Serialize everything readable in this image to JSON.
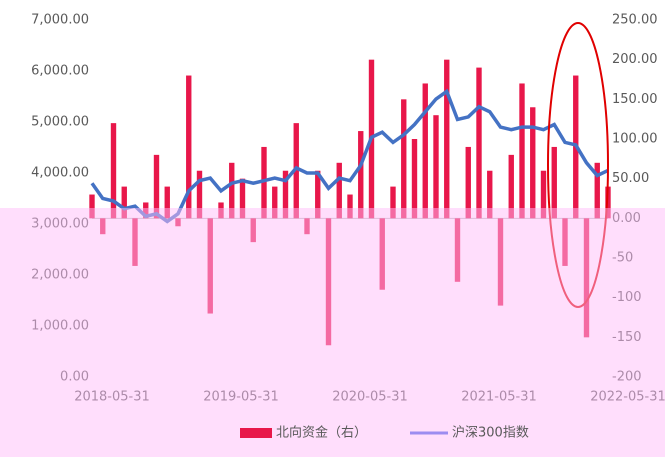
{
  "chart_data": {
    "type": "bar-line",
    "categories": [
      "2018-05-31",
      null,
      null,
      null,
      null,
      null,
      null,
      null,
      null,
      null,
      null,
      null,
      "2019-05-31",
      null,
      null,
      null,
      null,
      null,
      null,
      null,
      null,
      null,
      null,
      null,
      "2020-05-31",
      null,
      null,
      null,
      null,
      null,
      null,
      null,
      null,
      null,
      null,
      null,
      "2021-05-31",
      null,
      null,
      null,
      null,
      null,
      null,
      null,
      null,
      null,
      null,
      null,
      "2022-05-31"
    ],
    "series": [
      {
        "name": "北向资金（右）",
        "color": "#e8174a",
        "axis": "y2",
        "type": "bar",
        "values": [
          30,
          -20,
          120,
          40,
          -60,
          20,
          80,
          40,
          -10,
          180,
          60,
          -120,
          20,
          70,
          50,
          -30,
          90,
          40,
          60,
          120,
          -20,
          60,
          -160,
          70,
          30,
          110,
          200,
          -90,
          40,
          150,
          100,
          170,
          130,
          200,
          -80,
          90,
          190,
          60,
          -110,
          80,
          170,
          140,
          60,
          90,
          -60,
          180,
          -150,
          70,
          40
        ]
      },
      {
        "name": "沪深300指数",
        "color": "#4472c4",
        "type": "line",
        "values": [
          3800,
          3500,
          3450,
          3300,
          3350,
          3150,
          3200,
          3050,
          3200,
          3650,
          3850,
          3900,
          3650,
          3800,
          3850,
          3800,
          3850,
          3900,
          3850,
          4100,
          4000,
          4000,
          3700,
          3900,
          3850,
          4150,
          4700,
          4800,
          4600,
          4750,
          4950,
          5200,
          5450,
          5600,
          5050,
          5100,
          5300,
          5200,
          4900,
          4850,
          4900,
          4900,
          4850,
          4950,
          4600,
          4550,
          4200,
          3950,
          4050
        ]
      }
    ],
    "ylim": [
      0,
      7000
    ],
    "yticks": [
      {
        "value": 0,
        "label": "0.00"
      },
      {
        "value": 1000,
        "label": "1,000.00"
      },
      {
        "value": 2000,
        "label": "2,000.00"
      },
      {
        "value": 3000,
        "label": "3,000.00"
      },
      {
        "value": 4000,
        "label": "4,000.00"
      },
      {
        "value": 5000,
        "label": "5,000.00"
      },
      {
        "value": 6000,
        "label": "6,000.00"
      },
      {
        "value": 7000,
        "label": "7,000.00"
      }
    ],
    "y2lim": [
      -200,
      250
    ],
    "y2ticks": [
      -200,
      -150,
      -100,
      -50,
      {
        "value": 0,
        "label": "0.00"
      },
      {
        "value": 50,
        "label": "50.00"
      },
      {
        "value": 100,
        "label": "100.00"
      },
      {
        "value": 150,
        "label": "150.00"
      },
      {
        "value": 200,
        "label": "200.00"
      },
      {
        "value": 250,
        "label": "250.00"
      }
    ]
  }
}
